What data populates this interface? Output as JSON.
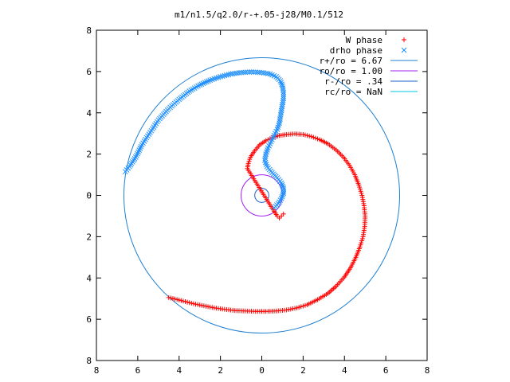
{
  "chart_data": {
    "type": "scatter",
    "title": "m1/n1.5/q2.0/r-+.05-j28/M0.1/512",
    "xlim": [
      -8,
      8
    ],
    "ylim": [
      -8,
      8
    ],
    "x_ticks": [
      -8,
      -6,
      -4,
      -2,
      0,
      2,
      4,
      6,
      8
    ],
    "y_ticks": [
      -8,
      -6,
      -4,
      -2,
      0,
      2,
      4,
      6,
      8
    ],
    "x_tick_labels": [
      "8",
      "6",
      "4",
      "2",
      "0",
      "2",
      "4",
      "6",
      "8"
    ],
    "y_tick_labels": [
      "8",
      "6",
      "4",
      "2",
      "0",
      "2",
      "4",
      "6",
      "8"
    ],
    "grid": false,
    "legend_position": "top-right",
    "series": [
      {
        "name": "W phase",
        "marker": "plus",
        "color": "#ff0000",
        "points": [
          [
            1.05,
            -0.9
          ],
          [
            0.95,
            -1.0
          ],
          [
            0.85,
            -1.1
          ],
          [
            0.75,
            -1.0
          ],
          [
            0.65,
            -0.85
          ],
          [
            0.55,
            -0.7
          ],
          [
            -0.7,
            1.3
          ],
          [
            -0.65,
            1.55
          ],
          [
            -0.55,
            1.85
          ],
          [
            -0.35,
            2.15
          ],
          [
            -0.1,
            2.45
          ],
          [
            0.2,
            2.65
          ],
          [
            0.5,
            2.8
          ],
          [
            0.85,
            2.9
          ],
          [
            1.2,
            2.95
          ],
          [
            1.6,
            2.98
          ],
          [
            2.0,
            2.95
          ],
          [
            2.4,
            2.85
          ],
          [
            2.8,
            2.7
          ],
          [
            3.2,
            2.5
          ],
          [
            3.6,
            2.2
          ],
          [
            3.95,
            1.85
          ],
          [
            4.25,
            1.45
          ],
          [
            4.5,
            1.0
          ],
          [
            4.7,
            0.5
          ],
          [
            4.85,
            0.0
          ],
          [
            4.95,
            -0.5
          ],
          [
            5.0,
            -1.0
          ],
          [
            4.98,
            -1.5
          ],
          [
            4.9,
            -2.0
          ],
          [
            4.75,
            -2.5
          ],
          [
            4.55,
            -3.0
          ],
          [
            4.3,
            -3.5
          ],
          [
            4.0,
            -3.95
          ],
          [
            3.6,
            -4.4
          ],
          [
            3.2,
            -4.75
          ],
          [
            2.7,
            -5.05
          ],
          [
            2.2,
            -5.3
          ],
          [
            1.7,
            -5.45
          ],
          [
            1.2,
            -5.55
          ],
          [
            0.7,
            -5.6
          ],
          [
            0.2,
            -5.62
          ],
          [
            -0.3,
            -5.62
          ],
          [
            -0.8,
            -5.6
          ],
          [
            -1.3,
            -5.58
          ],
          [
            -1.8,
            -5.52
          ],
          [
            -2.3,
            -5.45
          ],
          [
            -2.8,
            -5.35
          ],
          [
            -3.3,
            -5.25
          ],
          [
            -3.8,
            -5.12
          ],
          [
            -4.2,
            -5.02
          ],
          [
            -4.5,
            -4.95
          ]
        ]
      },
      {
        "name": "drho phase",
        "marker": "cross",
        "color": "#1f8fff",
        "points": [
          [
            0.6,
            -0.6
          ],
          [
            0.8,
            -0.4
          ],
          [
            0.95,
            -0.15
          ],
          [
            1.05,
            0.1
          ],
          [
            1.05,
            0.35
          ],
          [
            0.95,
            0.6
          ],
          [
            0.75,
            0.85
          ],
          [
            0.5,
            1.1
          ],
          [
            0.25,
            1.4
          ],
          [
            0.15,
            1.7
          ],
          [
            0.2,
            2.0
          ],
          [
            0.3,
            2.3
          ],
          [
            0.45,
            2.6
          ],
          [
            0.6,
            2.9
          ],
          [
            0.75,
            3.2
          ],
          [
            0.85,
            3.5
          ],
          [
            0.9,
            3.8
          ],
          [
            0.95,
            4.1
          ],
          [
            1.0,
            4.4
          ],
          [
            1.05,
            4.7
          ],
          [
            1.05,
            5.0
          ],
          [
            1.0,
            5.3
          ],
          [
            0.9,
            5.55
          ],
          [
            0.7,
            5.75
          ],
          [
            0.4,
            5.88
          ],
          [
            0.0,
            5.95
          ],
          [
            -0.5,
            5.98
          ],
          [
            -1.0,
            5.95
          ],
          [
            -1.5,
            5.88
          ],
          [
            -2.0,
            5.75
          ],
          [
            -2.5,
            5.58
          ],
          [
            -3.0,
            5.35
          ],
          [
            -3.5,
            5.05
          ],
          [
            -4.0,
            4.65
          ],
          [
            -4.5,
            4.2
          ],
          [
            -5.0,
            3.65
          ],
          [
            -5.4,
            3.05
          ],
          [
            -5.8,
            2.45
          ],
          [
            -6.1,
            1.85
          ],
          [
            -6.4,
            1.4
          ],
          [
            -6.6,
            1.15
          ]
        ]
      }
    ],
    "circles": [
      {
        "name": "r+/ro = 6.67",
        "radius": 6.67,
        "color": "#1e7fd0"
      },
      {
        "name": "ro/ro = 1.00",
        "radius": 1.0,
        "color": "#a020f0"
      },
      {
        "name": "r-/ro = .34",
        "radius": 0.34,
        "color": "#1e63c8"
      },
      {
        "name": "rc/ro = NaN",
        "radius": null,
        "color": "#00c8e0"
      }
    ]
  }
}
